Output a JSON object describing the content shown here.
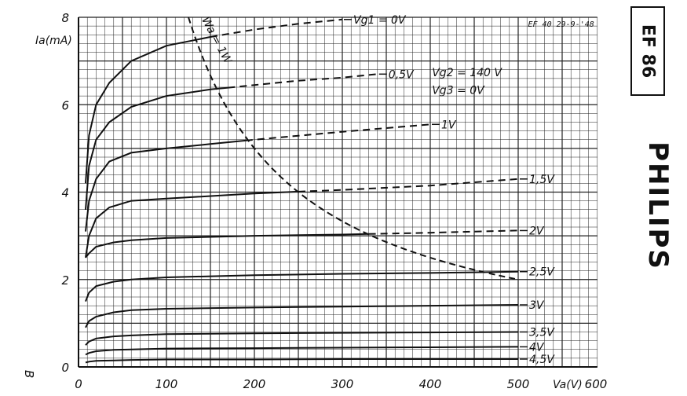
{
  "chart_data": {
    "type": "line",
    "y_axis_label": "Ia(mA)",
    "x_axis_label": "Va(V)",
    "xlim": [
      0,
      600
    ],
    "ylim": [
      0,
      8
    ],
    "x_ticks": [
      "0",
      "100",
      "200",
      "300",
      "400",
      "500",
      "600"
    ],
    "y_ticks": [
      "0",
      "2",
      "4",
      "6",
      "8"
    ],
    "grid": true,
    "note_top_right": "EF 40 29-9-'48",
    "condition_vg2": "Vg2 = 140 V",
    "condition_vg3": "Vg3 = 0V",
    "power_curve_label": "Wa = 1W",
    "series": [
      {
        "label": "Vg1 = 0V",
        "x": [
          8,
          12,
          20,
          35,
          60,
          100,
          150,
          200,
          250,
          300
        ],
        "y": [
          4.2,
          5.3,
          6.0,
          6.5,
          7.0,
          7.35,
          7.55,
          7.72,
          7.85,
          7.95
        ],
        "solid_to": 150
      },
      {
        "label": "0,5V",
        "x": [
          8,
          12,
          20,
          35,
          60,
          100,
          150,
          200,
          250,
          300,
          340
        ],
        "y": [
          3.6,
          4.6,
          5.2,
          5.6,
          5.95,
          6.2,
          6.35,
          6.45,
          6.55,
          6.62,
          6.7
        ],
        "solid_to": 170
      },
      {
        "label": "1V",
        "x": [
          8,
          12,
          20,
          35,
          60,
          100,
          150,
          200,
          300,
          400
        ],
        "y": [
          3.1,
          3.8,
          4.3,
          4.7,
          4.9,
          5.0,
          5.1,
          5.2,
          5.38,
          5.55
        ],
        "solid_to": 190
      },
      {
        "label": "1,5V",
        "x": [
          8,
          12,
          20,
          35,
          60,
          100,
          200,
          300,
          400,
          500
        ],
        "y": [
          2.5,
          3.0,
          3.4,
          3.65,
          3.8,
          3.85,
          3.97,
          4.05,
          4.15,
          4.3
        ],
        "solid_to": 250
      },
      {
        "label": "2V",
        "x": [
          8,
          12,
          20,
          40,
          60,
          100,
          200,
          300,
          400,
          500
        ],
        "y": [
          2.5,
          2.6,
          2.75,
          2.85,
          2.9,
          2.95,
          3.0,
          3.03,
          3.07,
          3.12
        ],
        "solid_to": 330
      },
      {
        "label": "2,5V",
        "x": [
          8,
          12,
          20,
          40,
          60,
          100,
          200,
          300,
          400,
          500
        ],
        "y": [
          1.5,
          1.7,
          1.85,
          1.95,
          2.0,
          2.05,
          2.1,
          2.13,
          2.15,
          2.18
        ],
        "solid_to": 500
      },
      {
        "label": "3V",
        "x": [
          8,
          12,
          20,
          40,
          60,
          100,
          200,
          300,
          400,
          500
        ],
        "y": [
          0.9,
          1.05,
          1.15,
          1.25,
          1.3,
          1.33,
          1.36,
          1.38,
          1.4,
          1.42
        ],
        "solid_to": 500
      },
      {
        "label": "3,5V",
        "x": [
          8,
          12,
          20,
          40,
          60,
          100,
          200,
          300,
          400,
          500
        ],
        "y": [
          0.5,
          0.58,
          0.65,
          0.7,
          0.72,
          0.75,
          0.77,
          0.78,
          0.79,
          0.8
        ],
        "solid_to": 500
      },
      {
        "label": "4V",
        "x": [
          8,
          12,
          20,
          40,
          60,
          100,
          200,
          300,
          400,
          500
        ],
        "y": [
          0.28,
          0.32,
          0.36,
          0.39,
          0.4,
          0.42,
          0.43,
          0.44,
          0.45,
          0.46
        ],
        "solid_to": 500
      },
      {
        "label": "4,5V",
        "x": [
          8,
          12,
          20,
          40,
          60,
          100,
          200,
          300,
          400,
          500
        ],
        "y": [
          0.1,
          0.12,
          0.14,
          0.15,
          0.16,
          0.17,
          0.17,
          0.18,
          0.18,
          0.18
        ],
        "solid_to": 500
      }
    ]
  },
  "tube_type": "EF 86",
  "brand": "PHILIPS",
  "corner_mark": "B"
}
